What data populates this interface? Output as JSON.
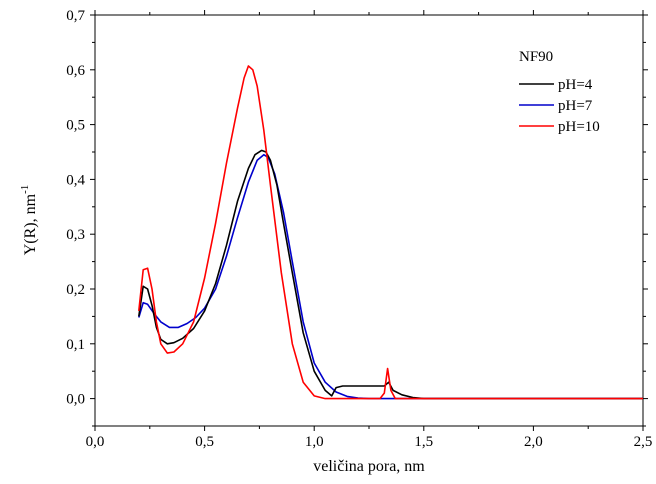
{
  "chart_data": {
    "type": "line",
    "xlabel": "veličina pora, nm",
    "ylabel_main": "Y(R), nm",
    "ylabel_sup": "-1",
    "xlim": [
      0.0,
      2.5
    ],
    "ylim": [
      -0.05,
      0.7
    ],
    "xticks": [
      "0,0",
      "0,5",
      "1,0",
      "1,5",
      "2,0",
      "2,5"
    ],
    "xtick_values": [
      0.0,
      0.5,
      1.0,
      1.5,
      2.0,
      2.5
    ],
    "yticks": [
      "0,0",
      "0,1",
      "0,2",
      "0,3",
      "0,4",
      "0,5",
      "0,6",
      "0,7"
    ],
    "ytick_values": [
      0.0,
      0.1,
      0.2,
      0.3,
      0.4,
      0.5,
      0.6,
      0.7
    ],
    "grid": false,
    "legend_title": "NF90",
    "legend_position": "top-right",
    "series": [
      {
        "name": "pH=4",
        "color": "#000000",
        "points": [
          [
            0.2,
            0.15
          ],
          [
            0.22,
            0.205
          ],
          [
            0.24,
            0.2
          ],
          [
            0.26,
            0.17
          ],
          [
            0.28,
            0.13
          ],
          [
            0.3,
            0.108
          ],
          [
            0.33,
            0.1
          ],
          [
            0.36,
            0.102
          ],
          [
            0.4,
            0.11
          ],
          [
            0.45,
            0.128
          ],
          [
            0.5,
            0.16
          ],
          [
            0.55,
            0.21
          ],
          [
            0.6,
            0.28
          ],
          [
            0.65,
            0.36
          ],
          [
            0.7,
            0.42
          ],
          [
            0.73,
            0.445
          ],
          [
            0.76,
            0.453
          ],
          [
            0.78,
            0.45
          ],
          [
            0.8,
            0.435
          ],
          [
            0.83,
            0.39
          ],
          [
            0.86,
            0.32
          ],
          [
            0.9,
            0.23
          ],
          [
            0.95,
            0.12
          ],
          [
            1.0,
            0.05
          ],
          [
            1.05,
            0.015
          ],
          [
            1.08,
            0.005
          ],
          [
            1.1,
            0.02
          ],
          [
            1.13,
            0.023
          ],
          [
            1.2,
            0.023
          ],
          [
            1.3,
            0.023
          ],
          [
            1.32,
            0.023
          ],
          [
            1.34,
            0.03
          ],
          [
            1.36,
            0.015
          ],
          [
            1.4,
            0.007
          ],
          [
            1.45,
            0.002
          ],
          [
            1.5,
            0.0
          ],
          [
            2.5,
            0.0
          ]
        ]
      },
      {
        "name": "pH=7",
        "color": "#0000cc",
        "points": [
          [
            0.2,
            0.148
          ],
          [
            0.22,
            0.175
          ],
          [
            0.24,
            0.172
          ],
          [
            0.27,
            0.155
          ],
          [
            0.3,
            0.14
          ],
          [
            0.34,
            0.13
          ],
          [
            0.38,
            0.13
          ],
          [
            0.42,
            0.137
          ],
          [
            0.46,
            0.148
          ],
          [
            0.5,
            0.165
          ],
          [
            0.55,
            0.2
          ],
          [
            0.6,
            0.26
          ],
          [
            0.65,
            0.33
          ],
          [
            0.7,
            0.395
          ],
          [
            0.74,
            0.435
          ],
          [
            0.77,
            0.445
          ],
          [
            0.79,
            0.44
          ],
          [
            0.82,
            0.41
          ],
          [
            0.86,
            0.34
          ],
          [
            0.9,
            0.25
          ],
          [
            0.95,
            0.14
          ],
          [
            1.0,
            0.065
          ],
          [
            1.05,
            0.03
          ],
          [
            1.1,
            0.012
          ],
          [
            1.15,
            0.004
          ],
          [
            1.2,
            0.001
          ],
          [
            1.25,
            0.0
          ],
          [
            2.5,
            0.0
          ]
        ]
      },
      {
        "name": "pH=10",
        "color": "#ff0000",
        "points": [
          [
            0.2,
            0.16
          ],
          [
            0.22,
            0.235
          ],
          [
            0.24,
            0.238
          ],
          [
            0.26,
            0.2
          ],
          [
            0.28,
            0.14
          ],
          [
            0.3,
            0.1
          ],
          [
            0.33,
            0.083
          ],
          [
            0.36,
            0.085
          ],
          [
            0.4,
            0.1
          ],
          [
            0.45,
            0.14
          ],
          [
            0.5,
            0.22
          ],
          [
            0.55,
            0.32
          ],
          [
            0.6,
            0.43
          ],
          [
            0.65,
            0.53
          ],
          [
            0.68,
            0.585
          ],
          [
            0.7,
            0.607
          ],
          [
            0.72,
            0.6
          ],
          [
            0.74,
            0.57
          ],
          [
            0.77,
            0.49
          ],
          [
            0.8,
            0.39
          ],
          [
            0.85,
            0.23
          ],
          [
            0.9,
            0.1
          ],
          [
            0.95,
            0.03
          ],
          [
            1.0,
            0.005
          ],
          [
            1.05,
            0.0
          ],
          [
            1.3,
            0.0
          ],
          [
            1.32,
            0.01
          ],
          [
            1.335,
            0.055
          ],
          [
            1.35,
            0.015
          ],
          [
            1.37,
            0.0
          ],
          [
            2.5,
            0.0
          ]
        ]
      }
    ]
  }
}
